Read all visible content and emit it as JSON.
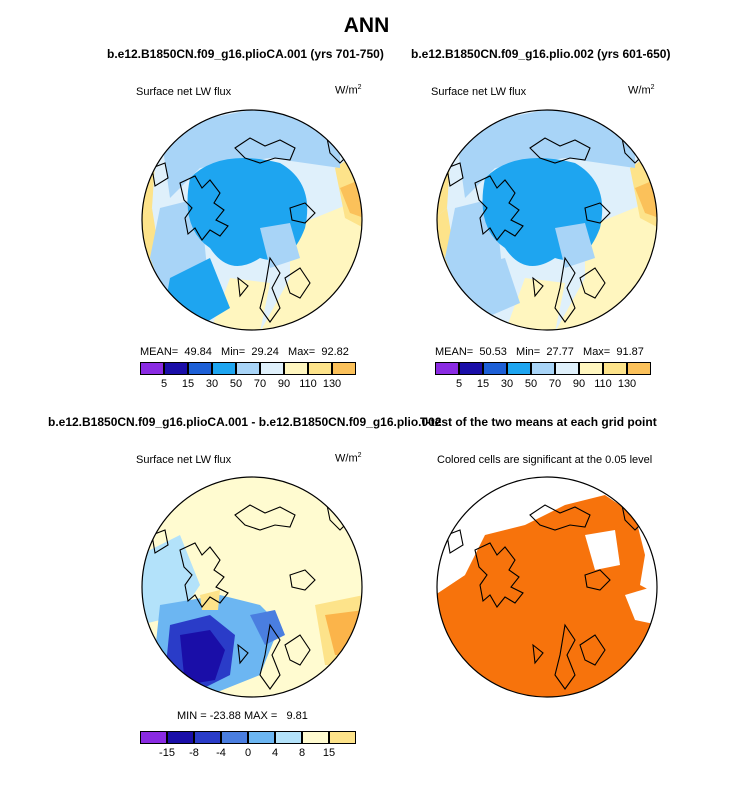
{
  "main_title": "ANN",
  "panels": [
    {
      "title": "b.e12.B1850CN.f09_g16.plioCA.001 (yrs 701-750)",
      "variable": "Surface net LW flux",
      "units": "W/m",
      "units_sup": "2",
      "stats": {
        "mean_label": "MEAN=",
        "mean": "49.84",
        "min_label": "Min=",
        "min": "29.24",
        "max_label": "Max=",
        "max": "92.82"
      },
      "colorbar_labels": [
        "5",
        "15",
        "30",
        "50",
        "70",
        "90",
        "110",
        "130"
      ]
    },
    {
      "title": "b.e12.B1850CN.f09_g16.plio.002 (yrs 601-650)",
      "variable": "Surface net LW flux",
      "units": "W/m",
      "units_sup": "2",
      "stats": {
        "mean_label": "MEAN=",
        "mean": "50.53",
        "min_label": "Min=",
        "min": "27.77",
        "max_label": "Max=",
        "max": "91.87"
      },
      "colorbar_labels": [
        "5",
        "15",
        "30",
        "50",
        "70",
        "90",
        "110",
        "130"
      ]
    },
    {
      "title": "b.e12.B1850CN.f09_g16.plioCA.001 - b.e12.B1850CN.f09_g16.plio.002",
      "variable": "Surface net LW flux",
      "units": "W/m",
      "units_sup": "2",
      "stats": {
        "min_label": "MIN =",
        "min": "-23.88",
        "max_label": "MAX =",
        "max": "9.81"
      },
      "colorbar_labels": [
        "-15",
        "-8",
        "-4",
        "0",
        "4",
        "8",
        "15"
      ]
    },
    {
      "title": "T-test of the two means at each grid point",
      "subtitle": "Colored cells are significant at the 0.05 level"
    }
  ],
  "colors": {
    "abs_scale": [
      "#8a2be2",
      "#1a0ea8",
      "#1d5fd6",
      "#1ea5f0",
      "#a8d4f7",
      "#dff0fb",
      "#fff6bf",
      "#fde38a",
      "#fbc15a",
      "#f79a2e",
      "#e94b1d",
      "#c8141a",
      "#8b0c0c",
      "#f06ab0"
    ],
    "diff_scale": [
      "#8a2be2",
      "#1a0ea8",
      "#2a3cc8",
      "#4a7ee0",
      "#6cb6f2",
      "#b3e2fa",
      "#fffbd0",
      "#fde38a",
      "#fbb44a",
      "#f7891f",
      "#e94b1d",
      "#c8141a",
      "#f06ab0"
    ],
    "significance": "#f7730c"
  }
}
